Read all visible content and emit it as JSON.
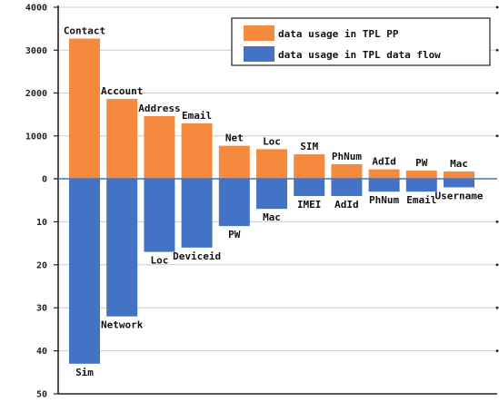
{
  "chart_data": {
    "type": "bar",
    "grid": true,
    "legend_position": "top-right",
    "colors": {
      "top": "#F58A3E",
      "bottom": "#4472C4",
      "grid": "#CCCCCC",
      "axis": "#222222"
    },
    "y_top": {
      "ylim": [
        0,
        4000
      ],
      "ticks": [
        "0",
        "1000",
        "2000",
        "3000",
        "4000"
      ]
    },
    "y_bottom": {
      "ylim": [
        0,
        50
      ],
      "ticks": [
        "10",
        "20",
        "30",
        "40",
        "50"
      ]
    },
    "series": [
      {
        "name": "data usage in TPL PP",
        "categories": [
          "Contact",
          "Account",
          "Address",
          "Email",
          "Net",
          "Loc",
          "SIM",
          "PhNum",
          "AdId",
          "PW",
          "Mac"
        ],
        "values": [
          3270,
          1860,
          1460,
          1290,
          770,
          690,
          570,
          340,
          220,
          190,
          170
        ]
      },
      {
        "name": "data usage in TPL data flow",
        "categories": [
          "Sim",
          "Network",
          "Loc",
          "Deviceid",
          "PW",
          "Mac",
          "IMEI",
          "AdId",
          "PhNum",
          "Email",
          "Username"
        ],
        "values": [
          43,
          32,
          17,
          16,
          11,
          7,
          4,
          4,
          3,
          3,
          2
        ]
      }
    ]
  }
}
